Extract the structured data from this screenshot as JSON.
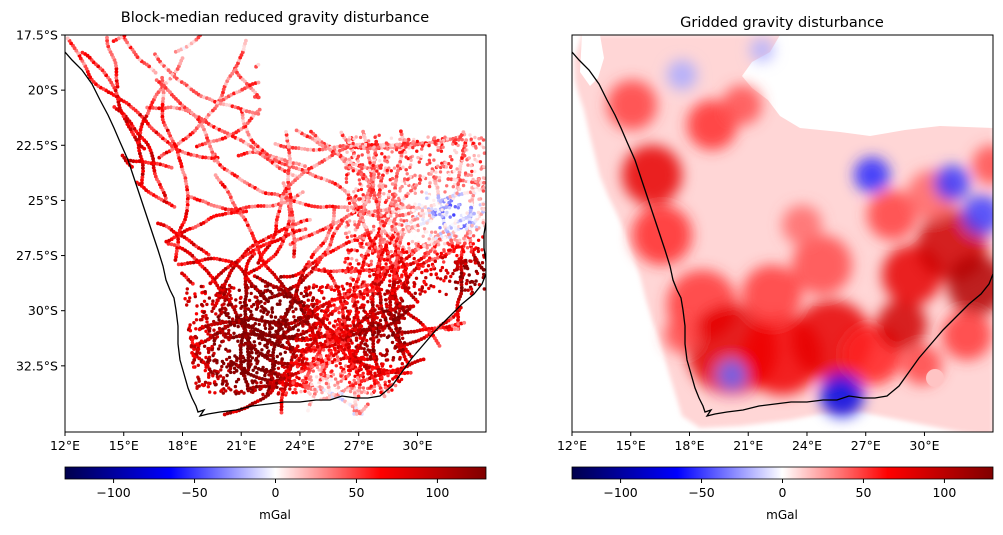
{
  "colors": {
    "colormap": [
      "#00004c",
      "#0000ff",
      "#ffffff",
      "#ff0000",
      "#800000"
    ],
    "coastline": "#000000",
    "background": "#ffffff"
  },
  "chart_data": [
    {
      "type": "scatter",
      "title": "Block-median reduced gravity disturbance",
      "xlim": [
        12,
        33.5
      ],
      "ylim": [
        -35.5,
        -17.5
      ],
      "x_ticks": [
        "12°E",
        "15°E",
        "18°E",
        "21°E",
        "24°E",
        "27°E",
        "30°E"
      ],
      "y_ticks": [
        "17.5°S",
        "20°S",
        "22.5°S",
        "25°S",
        "27.5°S",
        "30°S",
        "32.5°S"
      ],
      "show_y_ticks": true,
      "colorbar": {
        "ticks": [
          "−100",
          "−50",
          "0",
          "50",
          "100"
        ],
        "label": "mGal",
        "range": [
          -130,
          130
        ]
      }
    },
    {
      "type": "heatmap",
      "title": "Gridded gravity disturbance",
      "xlim": [
        12,
        33.5
      ],
      "ylim": [
        -35.5,
        -17.5
      ],
      "x_ticks": [
        "12°E",
        "15°E",
        "18°E",
        "21°E",
        "24°E",
        "27°E",
        "30°E"
      ],
      "y_ticks": [],
      "show_y_ticks": false,
      "colorbar": {
        "ticks": [
          "−100",
          "−50",
          "0",
          "50",
          "100"
        ],
        "label": "mGal",
        "range": [
          -130,
          130
        ]
      }
    }
  ]
}
